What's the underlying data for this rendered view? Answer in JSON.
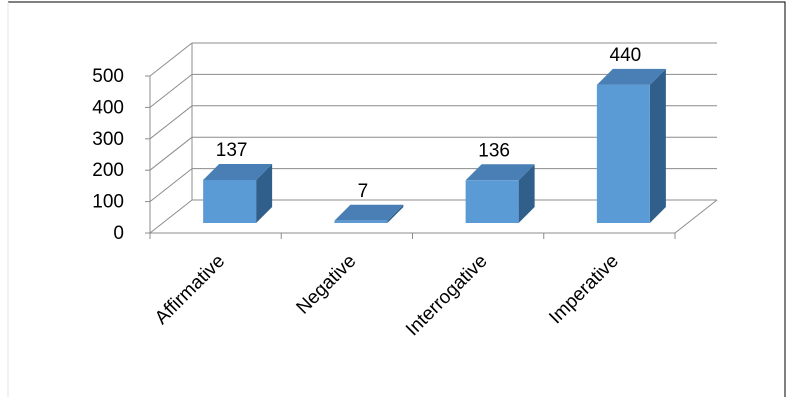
{
  "chart_data": {
    "type": "bar",
    "categories": [
      "Affirmative",
      "Negative",
      "Interrogative",
      "Imperative"
    ],
    "values": [
      137,
      7,
      136,
      440
    ],
    "data_labels": [
      "137",
      "7",
      "136",
      "440"
    ],
    "ylim": [
      0,
      500
    ],
    "yticks": [
      0,
      100,
      200,
      300,
      400,
      500
    ],
    "ytick_labels": [
      "0",
      "100",
      "200",
      "300",
      "400",
      "500"
    ],
    "grid": true,
    "style": "3d-column",
    "colors": {
      "bar_front": "#5B9BD5",
      "bar_side": "#2F5F8A",
      "bar_top": "#4A7FB5",
      "gridline": "#8C8C8C"
    }
  }
}
